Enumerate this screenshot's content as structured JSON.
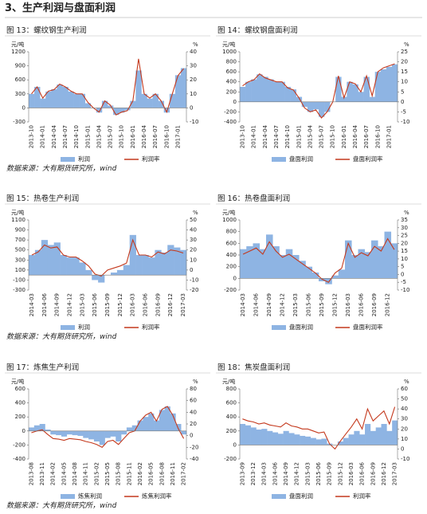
{
  "header": {
    "title": "3、生产利润与盘面利润"
  },
  "sources": [
    "数据来源：大有期货研究所，wind",
    "数据来源：大有期货研究所，wind",
    "数据来源：大有期货研究所，wind"
  ],
  "chart_data": [
    {
      "type": "combo",
      "title": "图 13：螺纹钢生产利润",
      "y_label": "元/吨",
      "y2_label": "%",
      "categories": [
        "2013-10",
        null,
        "2014-01",
        null,
        "2014-04",
        null,
        "2014-07",
        null,
        "2014-10",
        null,
        "2015-01",
        null,
        "2015-04",
        null,
        "2015-07",
        null,
        "2015-10",
        null,
        "2016-01",
        null,
        "2016-04",
        null,
        "2016-07",
        null,
        "2016-10",
        null,
        "2017-01",
        null
      ],
      "series": [
        {
          "name": "利润",
          "color": "#8eb4e3",
          "values": [
            300,
            450,
            200,
            350,
            400,
            500,
            450,
            350,
            300,
            300,
            100,
            0,
            -100,
            150,
            50,
            -150,
            -100,
            -50,
            150,
            800,
            300,
            200,
            300,
            150,
            -100,
            300,
            700,
            850
          ]
        },
        {
          "name": "利润率",
          "color": "#c4391d",
          "axis": "y2",
          "values": [
            10,
            15,
            7,
            12,
            13,
            17,
            15,
            12,
            10,
            10,
            4,
            0,
            -3,
            5,
            2,
            -5,
            -3,
            -2,
            5,
            35,
            10,
            7,
            10,
            5,
            -3,
            10,
            23,
            28
          ]
        }
      ],
      "ylim": [
        -300,
        1200
      ],
      "yticks": [
        -300,
        0,
        300,
        600,
        900,
        1200
      ],
      "y2lim": [
        -10,
        40
      ],
      "y2ticks": [
        -10,
        0,
        10,
        20,
        30,
        40
      ]
    },
    {
      "type": "combo",
      "title": "图 14：螺纹钢盘面利润",
      "y_label": "元/吨",
      "y2_label": "%",
      "categories": [
        "2013-10",
        null,
        "2014-01",
        null,
        "2014-04",
        null,
        "2014-07",
        null,
        "2014-10",
        null,
        "2015-01",
        null,
        "2015-04",
        null,
        "2015-07",
        null,
        "2015-10",
        null,
        "2016-01",
        null,
        "2016-04",
        null,
        "2016-07",
        null,
        "2016-10",
        null,
        "2017-01",
        null
      ],
      "series": [
        {
          "name": "盘面利润",
          "color": "#8eb4e3",
          "values": [
            300,
            400,
            450,
            550,
            500,
            450,
            400,
            400,
            300,
            250,
            100,
            -100,
            -200,
            -150,
            -300,
            -200,
            0,
            500,
            100,
            400,
            350,
            200,
            500,
            100,
            600,
            650,
            700,
            750
          ]
        },
        {
          "name": "盘面利润率",
          "color": "#c4391d",
          "axis": "y2",
          "values": [
            8,
            10,
            11,
            14,
            12,
            11,
            10,
            10,
            7,
            6,
            2,
            -3,
            -5,
            -4,
            -8,
            -5,
            0,
            13,
            2,
            10,
            9,
            5,
            13,
            3,
            15,
            17,
            18,
            19
          ]
        }
      ],
      "ylim": [
        -400,
        1000
      ],
      "yticks": [
        -400,
        -200,
        0,
        200,
        400,
        600,
        800,
        1000
      ],
      "y2lim": [
        -10,
        25
      ],
      "y2ticks": [
        -10,
        -5,
        0,
        5,
        10,
        15,
        20,
        25
      ]
    },
    {
      "type": "combo",
      "title": "图 15：热卷生产利润",
      "y_label": "元/吨",
      "y2_label": "%",
      "categories": [
        "2014-03",
        null,
        "2014-06",
        null,
        "2014-09",
        null,
        "2014-12",
        null,
        "2015-03",
        null,
        "2015-06",
        null,
        "2015-09",
        null,
        "2015-12",
        null,
        "2016-03",
        null,
        "2016-06",
        null,
        "2016-09",
        null,
        "2016-12",
        null,
        "2017-03"
      ],
      "series": [
        {
          "name": "利润",
          "color": "#8eb4e3",
          "values": [
            400,
            500,
            700,
            600,
            650,
            400,
            350,
            350,
            250,
            100,
            -100,
            -150,
            0,
            50,
            100,
            200,
            800,
            400,
            400,
            350,
            500,
            450,
            600,
            550,
            500
          ]
        },
        {
          "name": "利润率",
          "color": "#c4391d",
          "axis": "y2",
          "values": [
            15,
            18,
            25,
            22,
            23,
            15,
            13,
            13,
            9,
            4,
            -4,
            -6,
            0,
            2,
            4,
            7,
            30,
            15,
            15,
            13,
            18,
            16,
            20,
            19,
            17
          ]
        }
      ],
      "ylim": [
        -300,
        1100
      ],
      "yticks": [
        -300,
        -100,
        100,
        300,
        500,
        700,
        900,
        1100
      ],
      "y2lim": [
        -20,
        50
      ],
      "y2ticks": [
        -20,
        -10,
        0,
        10,
        20,
        30,
        40,
        50
      ]
    },
    {
      "type": "combo",
      "title": "图 16：热卷盘面利润",
      "y_label": "元/吨",
      "y2_label": "%",
      "categories": [
        "2014-03",
        null,
        "2014-06",
        null,
        "2014-09",
        null,
        "2014-12",
        null,
        "2015-03",
        null,
        "2015-06",
        null,
        "2015-09",
        null,
        "2015-12",
        null,
        "2016-03",
        null,
        "2016-06",
        null,
        "2016-09",
        null,
        "2016-12",
        null
      ],
      "series": [
        {
          "name": "盘面利润",
          "color": "#8eb4e3",
          "values": [
            500,
            550,
            600,
            500,
            750,
            550,
            400,
            500,
            400,
            300,
            200,
            100,
            -50,
            -100,
            50,
            150,
            650,
            400,
            500,
            450,
            650,
            550,
            800,
            600
          ]
        },
        {
          "name": "盘面利润率",
          "color": "#c4391d",
          "axis": "y2",
          "values": [
            13,
            15,
            17,
            13,
            21,
            15,
            11,
            13,
            10,
            7,
            4,
            1,
            -3,
            -5,
            1,
            4,
            20,
            11,
            14,
            12,
            18,
            15,
            23,
            16
          ]
        }
      ],
      "ylim": [
        -200,
        1000
      ],
      "yticks": [
        -200,
        0,
        200,
        400,
        600,
        800,
        1000
      ],
      "y2lim": [
        -10,
        35
      ],
      "y2ticks": [
        -10,
        -5,
        0,
        5,
        10,
        15,
        20,
        25,
        30,
        35
      ]
    },
    {
      "type": "combo",
      "title": "图 17：炼焦生产利润",
      "y_label": "元/吨",
      "y2_label": "%",
      "categories": [
        "2013-08",
        null,
        "2013-11",
        null,
        "2014-02",
        null,
        "2014-05",
        null,
        "2014-08",
        null,
        "2014-11",
        null,
        "2015-02",
        null,
        "2015-05",
        null,
        "2015-08",
        null,
        "2015-11",
        null,
        "2016-02",
        null,
        "2016-05",
        null,
        "2016-08",
        null,
        "2016-11",
        null,
        "2017-02"
      ],
      "series": [
        {
          "name": "炼焦利润",
          "color": "#8eb4e3",
          "values": [
            50,
            80,
            100,
            20,
            -50,
            -60,
            -80,
            -50,
            -60,
            -70,
            -100,
            -120,
            -150,
            -200,
            -100,
            -80,
            -150,
            -50,
            50,
            80,
            150,
            200,
            250,
            150,
            300,
            350,
            250,
            100,
            -50
          ]
        },
        {
          "name": "炼焦利润率",
          "color": "#c4391d",
          "axis": "y2",
          "values": [
            5,
            8,
            10,
            2,
            -5,
            -6,
            -8,
            -5,
            -6,
            -7,
            -10,
            -12,
            -15,
            -20,
            -10,
            -8,
            -15,
            -5,
            5,
            8,
            25,
            35,
            40,
            25,
            45,
            50,
            35,
            12,
            -5
          ]
        }
      ],
      "ylim": [
        -400,
        600
      ],
      "yticks": [
        -400,
        -200,
        0,
        200,
        400,
        600
      ],
      "y2lim": [
        -40,
        80
      ],
      "y2ticks": [
        -40,
        -20,
        0,
        20,
        40,
        60,
        80
      ]
    },
    {
      "type": "combo",
      "title": "图 18：焦炭盘面利润",
      "y_label": "元/吨",
      "y2_label": "%",
      "categories": [
        "2013-09",
        null,
        "2013-12",
        null,
        "2014-03",
        null,
        "2014-06",
        null,
        "2014-09",
        null,
        "2014-12",
        null,
        "2015-03",
        null,
        "2015-06",
        null,
        "2015-09",
        null,
        "2015-12",
        null,
        "2016-03",
        null,
        "2016-06",
        null,
        "2016-09",
        null,
        "2016-12",
        null,
        "2017-03"
      ],
      "series": [
        {
          "name": "盘面利润",
          "color": "#8eb4e3",
          "values": [
            300,
            280,
            250,
            220,
            230,
            200,
            180,
            160,
            200,
            170,
            150,
            130,
            120,
            100,
            80,
            90,
            20,
            0,
            50,
            100,
            150,
            200,
            150,
            300,
            200,
            250,
            300,
            200,
            350
          ]
        },
        {
          "name": "利润率",
          "color": "#c4391d",
          "axis": "y2",
          "values": [
            30,
            28,
            27,
            25,
            26,
            24,
            23,
            22,
            26,
            23,
            22,
            20,
            20,
            18,
            16,
            17,
            5,
            0,
            8,
            15,
            22,
            30,
            20,
            40,
            28,
            33,
            38,
            25,
            42
          ]
        }
      ],
      "ylim": [
        -200,
        800
      ],
      "yticks": [
        -200,
        0,
        200,
        400,
        600,
        800
      ],
      "y2lim": [
        -10,
        60
      ],
      "y2ticks": [
        -10,
        0,
        10,
        20,
        30,
        40,
        50,
        60
      ]
    }
  ]
}
